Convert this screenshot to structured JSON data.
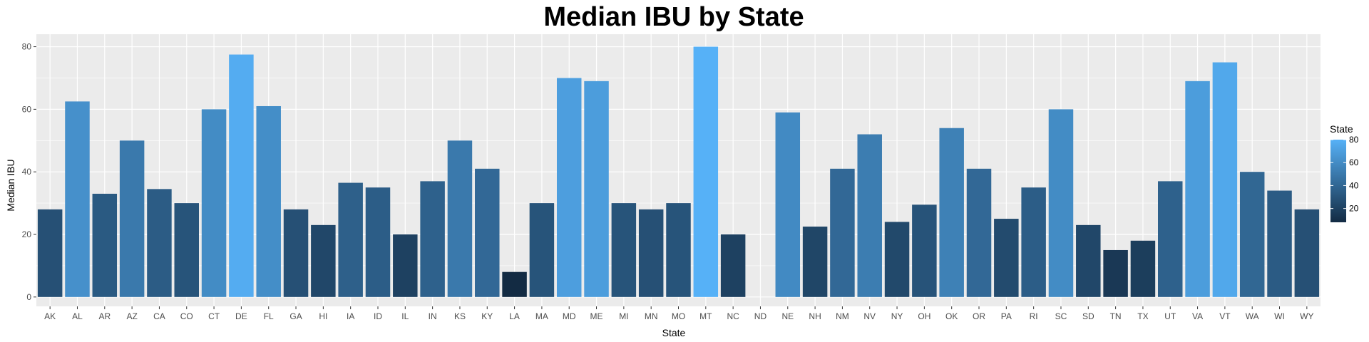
{
  "chart_data": {
    "type": "bar",
    "title": "Median IBU by State",
    "xlabel": "State",
    "ylabel": "Median IBU",
    "ylim": [
      -3,
      84
    ],
    "yticks": [
      "0",
      "20",
      "40",
      "60",
      "80"
    ],
    "grid": true,
    "legend": {
      "title": "State",
      "placement": "right",
      "ticks": [
        "20",
        "40",
        "60",
        "80"
      ],
      "range": [
        8,
        80
      ],
      "color_low": "#132B43",
      "color_high": "#56B1F7"
    },
    "categories": [
      "AK",
      "AL",
      "AR",
      "AZ",
      "CA",
      "CO",
      "CT",
      "DE",
      "FL",
      "GA",
      "HI",
      "IA",
      "ID",
      "IL",
      "IN",
      "KS",
      "KY",
      "LA",
      "MA",
      "MD",
      "ME",
      "MI",
      "MN",
      "MO",
      "MT",
      "NC",
      "ND",
      "NE",
      "NH",
      "NM",
      "NV",
      "NY",
      "OH",
      "OK",
      "OR",
      "PA",
      "RI",
      "SC",
      "SD",
      "TN",
      "TX",
      "UT",
      "VA",
      "VT",
      "WA",
      "WI",
      "WY"
    ],
    "values": [
      28,
      62.5,
      33,
      50,
      34.5,
      30,
      60,
      77.5,
      61,
      28,
      23,
      36.5,
      35,
      20,
      37,
      50,
      41,
      8,
      30,
      70,
      69,
      30,
      28,
      30,
      80,
      20,
      null,
      59,
      22.5,
      41,
      52,
      24,
      29.5,
      54,
      41,
      25,
      35,
      60,
      23,
      15,
      18,
      37,
      69,
      75,
      40,
      34,
      28
    ]
  }
}
